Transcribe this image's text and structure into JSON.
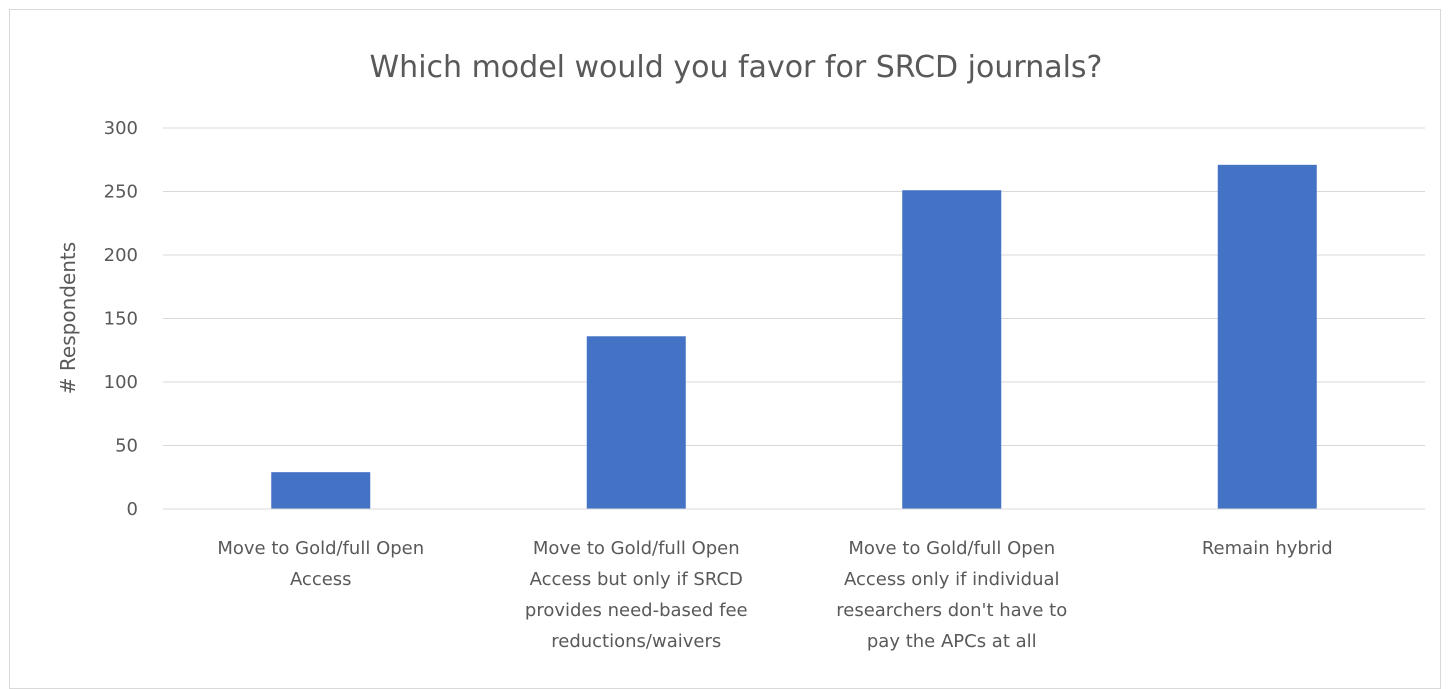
{
  "chart_data": {
    "type": "bar",
    "title": "Which model would you favor for SRCD journals?",
    "xlabel": "",
    "ylabel": "# Respondents",
    "ylim": [
      0,
      300
    ],
    "yticks": [
      0,
      50,
      100,
      150,
      200,
      250,
      300
    ],
    "grid": true,
    "legend": "none",
    "bar_color": "#4472c4",
    "categories": [
      [
        "Move to Gold/full Open",
        "Access"
      ],
      [
        "Move to Gold/full Open",
        "Access but only if SRCD",
        "provides need-based fee",
        "reductions/waivers"
      ],
      [
        "Move to Gold/full Open",
        "Access only if individual",
        "researchers don't have to",
        "pay the APCs at all"
      ],
      [
        "Remain hybrid"
      ]
    ],
    "values": [
      29,
      136,
      251,
      271
    ]
  }
}
